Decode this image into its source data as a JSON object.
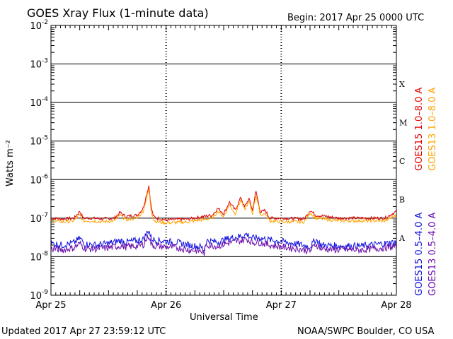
{
  "header": {
    "title": "GOES Xray Flux (1-minute data)",
    "begin": "Begin:  2017 Apr 25 0000 UTC"
  },
  "footer": {
    "updated": "Updated 2017 Apr 27 23:59:12 UTC",
    "credit": "NOAA/SWPC Boulder, CO USA"
  },
  "chart_data": {
    "type": "line",
    "ylabel": "Watts m⁻²",
    "xlabel": "Universal Time",
    "yscale": "log",
    "ylim": [
      1e-09,
      0.01
    ],
    "ytick_exponents": [
      -9,
      -8,
      -7,
      -6,
      -5,
      -4,
      -3,
      -2
    ],
    "xlim": [
      "2017-04-25",
      "2017-04-28"
    ],
    "x_tick_labels": [
      "Apr 25",
      "Apr 26",
      "Apr 27",
      "Apr 28"
    ],
    "class_labels": [
      {
        "label": "A",
        "value": 1e-08
      },
      {
        "label": "B",
        "value": 1e-07
      },
      {
        "label": "C",
        "value": 1e-06
      },
      {
        "label": "M",
        "value": 1e-05
      },
      {
        "label": "X",
        "value": 0.0001
      }
    ],
    "grid": "horizontal at decades",
    "series": [
      {
        "name": "GOES15 1.0–8.0 A",
        "color": "#e00000",
        "time_days": [
          0,
          0.1,
          0.2,
          0.25,
          0.28,
          0.35,
          0.45,
          0.55,
          0.6,
          0.65,
          0.75,
          0.8,
          0.85,
          0.87,
          0.89,
          0.92,
          1.0,
          1.2,
          1.4,
          1.45,
          1.5,
          1.55,
          1.6,
          1.65,
          1.68,
          1.72,
          1.75,
          1.78,
          1.82,
          1.86,
          1.9,
          2.0,
          2.2,
          2.25,
          2.3,
          2.5,
          2.7,
          2.9,
          3.0
        ],
        "values": [
          1e-07,
          9.5e-08,
          1e-07,
          1.5e-07,
          1e-07,
          1e-07,
          9.5e-08,
          1e-07,
          1.4e-07,
          1.1e-07,
          1.2e-07,
          1.8e-07,
          7e-07,
          2e-07,
          1.1e-07,
          1e-07,
          9e-08,
          9.5e-08,
          1.2e-07,
          1.8e-07,
          1.3e-07,
          2.6e-07,
          1.6e-07,
          3.5e-07,
          1.9e-07,
          3.2e-07,
          1.6e-07,
          5e-07,
          1.4e-07,
          1.6e-07,
          1e-07,
          1e-07,
          9.5e-08,
          1.6e-07,
          1.2e-07,
          1e-07,
          1e-07,
          1e-07,
          1.5e-07
        ]
      },
      {
        "name": "GOES13 1.0–8.0 A",
        "color": "#ffa500",
        "time_days": [
          0,
          0.1,
          0.2,
          0.25,
          0.28,
          0.35,
          0.45,
          0.55,
          0.6,
          0.65,
          0.75,
          0.8,
          0.85,
          0.87,
          0.89,
          0.92,
          1.0,
          1.2,
          1.4,
          1.45,
          1.5,
          1.55,
          1.6,
          1.65,
          1.68,
          1.72,
          1.75,
          1.78,
          1.82,
          1.86,
          1.9,
          2.0,
          2.2,
          2.25,
          2.3,
          2.5,
          2.7,
          2.9,
          3.0
        ],
        "values": [
          8.5e-08,
          8e-08,
          8.5e-08,
          1.2e-07,
          8.5e-08,
          8.5e-08,
          8e-08,
          8.5e-08,
          1.2e-07,
          9e-08,
          1e-07,
          1.5e-07,
          5.5e-07,
          1.6e-07,
          9e-08,
          8e-08,
          7.5e-08,
          8e-08,
          1e-07,
          1.5e-07,
          1.1e-07,
          2.2e-07,
          1.3e-07,
          3e-07,
          1.6e-07,
          2.7e-07,
          1.3e-07,
          4e-07,
          1.2e-07,
          1.3e-07,
          8.5e-08,
          8e-08,
          8e-08,
          1.4e-07,
          1e-07,
          8.5e-08,
          8.5e-08,
          8.5e-08,
          1.2e-07
        ]
      },
      {
        "name": "GOES15 0.5–4.0 A",
        "color": "#1010e0",
        "time_days": [
          0,
          0.1,
          0.2,
          0.25,
          0.3,
          0.4,
          0.5,
          0.6,
          0.65,
          0.75,
          0.8,
          0.85,
          0.87,
          0.9,
          1.0,
          1.1,
          1.2,
          1.3,
          1.33,
          1.35,
          1.45,
          1.55,
          1.65,
          1.7,
          1.75,
          1.8,
          1.9,
          2.0,
          2.15,
          2.25,
          2.3,
          2.35,
          2.5,
          2.7,
          2.9,
          3.0
        ],
        "values": [
          2.2e-08,
          2e-08,
          2.3e-08,
          3e-08,
          2.1e-08,
          2e-08,
          2.2e-08,
          2.6e-08,
          2.4e-08,
          2.6e-08,
          2.8e-08,
          5e-08,
          3e-08,
          2.7e-08,
          2.5e-08,
          2.3e-08,
          2e-08,
          1.8e-08,
          1.5e-08,
          2.6e-08,
          2.4e-08,
          3e-08,
          3.4e-08,
          3.8e-08,
          3e-08,
          3.1e-08,
          2.7e-08,
          2.5e-08,
          2.1e-08,
          1.8e-08,
          2.8e-08,
          2e-08,
          1.9e-08,
          1.9e-08,
          2.2e-08,
          2.4e-08
        ]
      },
      {
        "name": "GOES13 0.5–4.0 A",
        "color": "#6a0dad",
        "time_days": [
          0,
          0.1,
          0.2,
          0.25,
          0.3,
          0.4,
          0.5,
          0.6,
          0.65,
          0.75,
          0.8,
          0.85,
          0.87,
          0.9,
          1.0,
          1.1,
          1.2,
          1.3,
          1.33,
          1.35,
          1.45,
          1.55,
          1.65,
          1.7,
          1.75,
          1.8,
          1.9,
          2.0,
          2.15,
          2.25,
          2.3,
          2.35,
          2.5,
          2.7,
          2.9,
          3.0
        ],
        "values": [
          1.6e-08,
          1.5e-08,
          1.7e-08,
          2.2e-08,
          1.6e-08,
          1.6e-08,
          1.7e-08,
          1.9e-08,
          1.8e-08,
          1.9e-08,
          2e-08,
          3.6e-08,
          2.1e-08,
          1.9e-08,
          1.8e-08,
          1.7e-08,
          1.5e-08,
          1.4e-08,
          1.2e-08,
          2e-08,
          1.9e-08,
          2.3e-08,
          2.6e-08,
          2.9e-08,
          2.3e-08,
          2.4e-08,
          2e-08,
          1.8e-08,
          1.6e-08,
          1.4e-08,
          2.1e-08,
          1.6e-08,
          1.5e-08,
          1.5e-08,
          1.7e-08,
          1.8e-08
        ]
      }
    ]
  }
}
